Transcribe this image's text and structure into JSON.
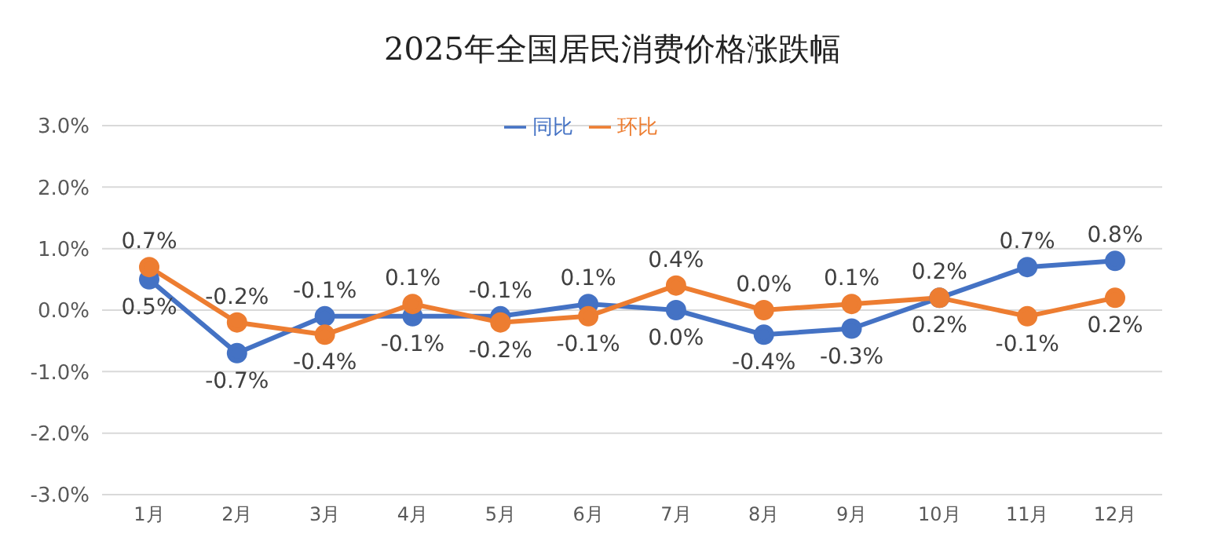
{
  "chart_data": {
    "type": "line",
    "title": "2025年全国居民消费价格涨跌幅",
    "categories": [
      "1月",
      "2月",
      "3月",
      "4月",
      "5月",
      "6月",
      "7月",
      "8月",
      "9月",
      "10月",
      "11月",
      "12月"
    ],
    "series": [
      {
        "name": "同比",
        "color": "#4472c4",
        "values": [
          0.5,
          -0.7,
          -0.1,
          -0.1,
          -0.1,
          0.1,
          0.0,
          -0.4,
          -0.3,
          0.2,
          0.7,
          0.8
        ],
        "value_labels": [
          "0.5%",
          "-0.7%",
          "-0.1%",
          "-0.1%",
          "-0.1%",
          "0.1%",
          "0.0%",
          "-0.4%",
          "-0.3%",
          "0.2%",
          "0.7%",
          "0.8%"
        ]
      },
      {
        "name": "环比",
        "color": "#ed7d31",
        "values": [
          0.7,
          -0.2,
          -0.4,
          0.1,
          -0.2,
          -0.1,
          0.4,
          0.0,
          0.1,
          0.2,
          -0.1,
          0.2
        ],
        "value_labels": [
          "0.7%",
          "-0.2%",
          "-0.4%",
          "0.1%",
          "-0.2%",
          "-0.1%",
          "0.4%",
          "0.0%",
          "0.1%",
          "0.2%",
          "-0.1%",
          "0.2%"
        ]
      }
    ],
    "ylim": [
      -3,
      3
    ],
    "yticks": [
      {
        "value": -3,
        "label": "-3.0%"
      },
      {
        "value": -2,
        "label": "-2.0%"
      },
      {
        "value": -1,
        "label": "-1.0%"
      },
      {
        "value": 0,
        "label": "0.0%"
      },
      {
        "value": 1,
        "label": "1.0%"
      },
      {
        "value": 2,
        "label": "2.0%"
      },
      {
        "value": 3,
        "label": "3.0%"
      }
    ],
    "grid": "y",
    "legend": "top",
    "marker": "circle",
    "line_style": "solid"
  }
}
